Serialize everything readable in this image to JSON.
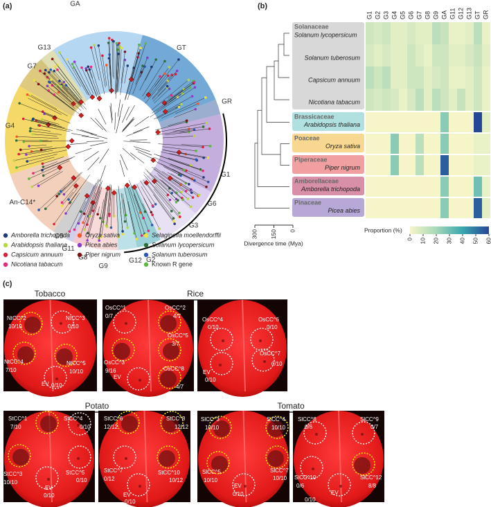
{
  "panel_a": {
    "label": "(a)",
    "clades": [
      {
        "name": "GA",
        "color": "#a8d0f0"
      },
      {
        "name": "GT",
        "color": "#5a9ad0"
      },
      {
        "name": "GR",
        "color": "#8aa0c8"
      },
      {
        "name": "G1",
        "color": "#b8a0d8"
      },
      {
        "name": "G6",
        "color": "#d4c4ec"
      },
      {
        "name": "G3",
        "color": "#e4dcf2"
      },
      {
        "name": "G2",
        "color": "#88c8d0"
      },
      {
        "name": "G12",
        "color": "#b0dce4"
      },
      {
        "name": "G9",
        "color": "#f8d4d4"
      },
      {
        "name": "G8",
        "color": "#f2c0c8"
      },
      {
        "name": "G11",
        "color": "#c8c8e8"
      },
      {
        "name": "G5",
        "color": "#c8c8c8"
      },
      {
        "name": "An-C14*",
        "color": "#f0c8b0"
      },
      {
        "name": "G4",
        "color": "#f2d24e"
      },
      {
        "name": "G7",
        "color": "#d8c068"
      },
      {
        "name": "G13",
        "color": "#e8e0a8"
      }
    ],
    "legend": [
      {
        "name": "Amborella trichopoda",
        "color": "#1f3a7a"
      },
      {
        "name": "Arabidopsis thaliana",
        "color": "#b8d840"
      },
      {
        "name": "Capsicum annuum",
        "color": "#d8203c"
      },
      {
        "name": "Nicotiana tabacum",
        "color": "#e8287a"
      },
      {
        "name": "Oryza sativa",
        "color": "#f05a28"
      },
      {
        "name": "Picea abies",
        "color": "#8a3cc8"
      },
      {
        "name": "Piper nigrum",
        "color": "#7a1414"
      },
      {
        "name": "Selaginella moellendorffii",
        "color": "#f0e040"
      },
      {
        "name": "Solanum lycopersicum",
        "color": "#2f6e3a"
      },
      {
        "name": "Solanum tuberosum",
        "color": "#2a5ab0"
      },
      {
        "name": "Known R gene",
        "color": "#5cb83c"
      }
    ]
  },
  "panel_b": {
    "label": "(b)",
    "columns": [
      "G1",
      "G2",
      "G3",
      "G4",
      "G5",
      "G6",
      "G7",
      "G8",
      "G9",
      "GA",
      "G11",
      "G12",
      "G13",
      "GT",
      "GR"
    ],
    "families": [
      {
        "name": "Solanaceae",
        "color": "#d8d8d8",
        "species": [
          "Solanum lycopersicum",
          "Solanum tuberosum",
          "Capsicum annuum",
          "Nicotiana tabacum"
        ],
        "values": [
          [
            10,
            8,
            10,
            5,
            5,
            8,
            5,
            5,
            15,
            12,
            3,
            3,
            5,
            15,
            3
          ],
          [
            8,
            5,
            8,
            5,
            5,
            10,
            6,
            3,
            10,
            10,
            5,
            5,
            8,
            12,
            5
          ],
          [
            15,
            10,
            15,
            5,
            5,
            10,
            10,
            5,
            8,
            10,
            3,
            3,
            5,
            10,
            3
          ],
          [
            10,
            8,
            10,
            8,
            3,
            8,
            15,
            5,
            15,
            10,
            5,
            12,
            5,
            10,
            3
          ]
        ]
      },
      {
        "name": "Brassicaceae",
        "color": "#b0e0e0",
        "species": [
          "Arabidopsis thaliana"
        ],
        "values": [
          [
            0,
            0,
            0,
            0,
            0,
            0,
            0,
            0,
            0,
            25,
            0,
            0,
            0,
            60,
            5
          ]
        ]
      },
      {
        "name": "Poaceae",
        "color": "#f8d890",
        "species": [
          "Oryza sativa"
        ],
        "values": [
          [
            0,
            0,
            0,
            25,
            0,
            0,
            15,
            0,
            0,
            25,
            0,
            0,
            0,
            3,
            3
          ]
        ]
      },
      {
        "name": "Piperaceae",
        "color": "#f0a0a0",
        "species": [
          "Piper nigrum"
        ],
        "values": [
          [
            0,
            0,
            0,
            25,
            0,
            0,
            15,
            0,
            0,
            55,
            0,
            0,
            0,
            3,
            3
          ]
        ]
      },
      {
        "name": "Amborellaceae",
        "color": "#d890a8",
        "species": [
          "Amborella trichopoda"
        ],
        "values": [
          [
            0,
            0,
            0,
            0,
            0,
            0,
            0,
            0,
            0,
            25,
            0,
            0,
            0,
            30,
            3
          ]
        ]
      },
      {
        "name": "Pinaceae",
        "color": "#b8a8d8",
        "species": [
          "Picea abies"
        ],
        "values": [
          [
            0,
            0,
            0,
            0,
            0,
            0,
            0,
            0,
            0,
            25,
            0,
            0,
            0,
            55,
            5
          ]
        ]
      }
    ],
    "colorbar": {
      "title": "Proportion (%)",
      "lim": [
        0,
        60
      ],
      "ticks": [
        0,
        10,
        20,
        30,
        40,
        50,
        60
      ]
    },
    "time_axis": {
      "title": "Divergence time (Mya)",
      "lim": [
        300,
        0
      ],
      "ticks": [
        300,
        150,
        0
      ]
    }
  },
  "panel_c": {
    "label": "(c)",
    "groups": [
      {
        "title": "Tobacco",
        "leaves": [
          [
            {
              "name": "NtCC^2",
              "score": "10/10",
              "color": "yellow"
            },
            {
              "name": "NtCC^3",
              "score": "0/10",
              "color": "white"
            },
            {
              "name": "NtCC^4",
              "score": "7/10",
              "color": "yellow"
            },
            {
              "name": "NtCC^5",
              "score": "10/10",
              "color": "yellow"
            },
            {
              "name": "EV",
              "score": "0/10",
              "color": "white"
            }
          ]
        ]
      },
      {
        "title": "Rice",
        "leaves": [
          [
            {
              "name": "OsCC^1",
              "score": "0/7",
              "color": "white"
            },
            {
              "name": "OsCC^2",
              "score": "4/7",
              "color": "yellow"
            },
            {
              "name": "OsCC^5",
              "score": "3/7",
              "color": "yellow"
            },
            {
              "name": "OsCC^3",
              "score": "9/16",
              "color": "yellow"
            },
            {
              "name": "EV",
              "color": "white"
            },
            {
              "name": "OsCC^8",
              "score": "4/7",
              "color": "yellow"
            }
          ],
          [
            {
              "name": "OsCC^4",
              "score": "0/10",
              "color": "white"
            },
            {
              "name": "OsCC^6",
              "score": "0/10",
              "color": "white"
            },
            {
              "name": "OsCC^7",
              "score": "0/10",
              "color": "white"
            },
            {
              "name": "EV",
              "score": "0/10",
              "color": "white"
            }
          ]
        ]
      },
      {
        "title": "Potato",
        "leaves": [
          [
            {
              "name": "StCC^1",
              "score": "7/10",
              "color": "yellow"
            },
            {
              "name": "StCC^4",
              "score": "0/10",
              "color": "white"
            },
            {
              "name": "StCC^3",
              "score": "10/10",
              "color": "yellow"
            },
            {
              "name": "StCC^5",
              "score": "0/10",
              "color": "white"
            },
            {
              "name": "EV",
              "score": "0/10",
              "color": "white"
            }
          ],
          [
            {
              "name": "StCC^6",
              "score": "12/12",
              "color": "yellow"
            },
            {
              "name": "StCC^8",
              "score": "12/12",
              "color": "yellow"
            },
            {
              "name": "StCC^7",
              "score": "0/12",
              "color": "white"
            },
            {
              "name": "StCC^10",
              "score": "10/12",
              "color": "yellow"
            },
            {
              "name": "EV",
              "score": "0/10",
              "color": "white"
            }
          ]
        ]
      },
      {
        "title": "Tomato",
        "leaves": [
          [
            {
              "name": "SlCC^3",
              "score": "10/10",
              "color": "yellow"
            },
            {
              "name": "SlCC^4",
              "score": "10/10",
              "color": "yellow"
            },
            {
              "name": "SlCC^5",
              "score": "10/10",
              "color": "yellow"
            },
            {
              "name": "SlCC^7",
              "score": "10/10",
              "color": "yellow"
            },
            {
              "name": "EV",
              "score": "0/10",
              "color": "white"
            }
          ],
          [
            {
              "name": "SlCC^8",
              "score": "0/6",
              "color": "white"
            },
            {
              "name": "SlCC^9",
              "score": "0/7",
              "color": "white"
            },
            {
              "name": "SlCC^10",
              "score": "0/6",
              "color": "white"
            },
            {
              "name": "SlCC^12",
              "score": "8/8",
              "color": "yellow"
            },
            {
              "name": "EV",
              "score": "0/10",
              "color": "white"
            }
          ]
        ]
      }
    ]
  }
}
